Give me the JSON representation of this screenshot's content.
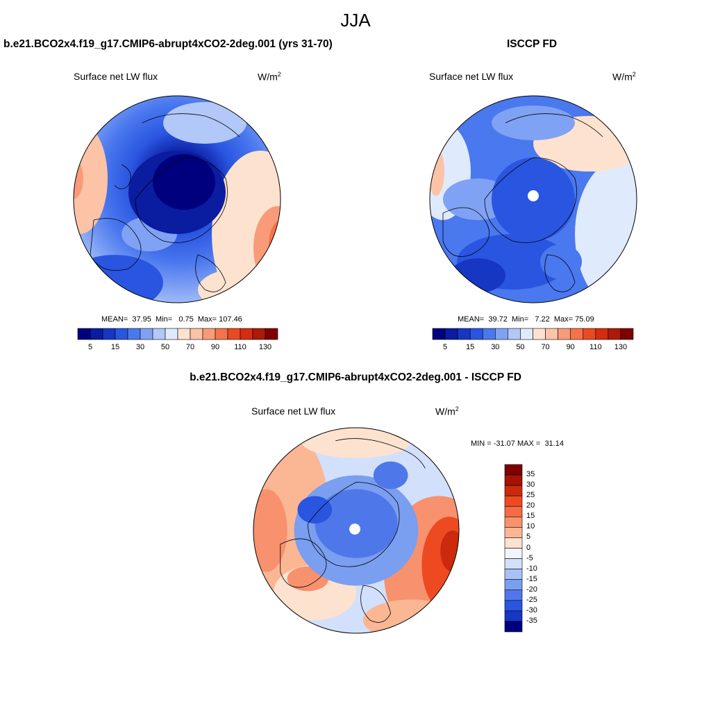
{
  "figure": {
    "season": "JJA",
    "left_title": "b.e21.BCO2x4.f19_g17.CMIP6-abrupt4xCO2-2deg.001 (yrs 31-70)",
    "right_title": "ISCCP FD",
    "diff_title": "b.e21.BCO2x4.f19_g17.CMIP6-abrupt4xCO2-2deg.001 - ISCCP FD"
  },
  "panels": {
    "model": {
      "variable": "Surface net LW flux",
      "units_base": "W/m",
      "units_exp": "2",
      "mean_label": "MEAN=",
      "mean": "37.95",
      "min_label": "Min=",
      "min": "0.75",
      "max_label": "Max=",
      "max": "107.46"
    },
    "obs": {
      "variable": "Surface net LW flux",
      "units_base": "W/m",
      "units_exp": "2",
      "mean_label": "MEAN=",
      "mean": "39.72",
      "min_label": "Min=",
      "min": "7.22",
      "max_label": "Max=",
      "max": "75.09"
    },
    "diff": {
      "variable": "Surface net LW flux",
      "units_base": "W/m",
      "units_exp": "2",
      "min_label": "MIN =",
      "min": "-31.07",
      "max_label": "MAX =",
      "max": "31.14"
    }
  },
  "abs_colorbar": {
    "colors": [
      "#00007f",
      "#0a1ca0",
      "#1636c4",
      "#2a55e0",
      "#4a78ee",
      "#80a2f4",
      "#b1c8f8",
      "#dfeafc",
      "#fde2cf",
      "#fcc3a6",
      "#f99b78",
      "#f57349",
      "#ea4a22",
      "#d42d10",
      "#ac1a08",
      "#7f0000"
    ],
    "labels": [
      "5",
      "15",
      "30",
      "50",
      "70",
      "90",
      "110",
      "130"
    ]
  },
  "diff_colorbar": {
    "colors": [
      "#7f0000",
      "#a61204",
      "#cc2a0c",
      "#ee4a22",
      "#f46c44",
      "#f8916e",
      "#fbb694",
      "#fde2cf",
      "#f4f4ff",
      "#d2e0fb",
      "#a8c2f5",
      "#7a9ef0",
      "#4e78ea",
      "#2a55e0",
      "#1636c4",
      "#00007f"
    ],
    "labels": [
      "35",
      "30",
      "25",
      "20",
      "15",
      "10",
      "5",
      "0",
      "-5",
      "-10",
      "-15",
      "-20",
      "-25",
      "-30",
      "-35"
    ]
  },
  "chart_data": [
    {
      "type": "heatmap",
      "title": "b.e21.BCO2x4.f19_g17.CMIP6-abrupt4xCO2-2deg.001 (yrs 31-70)",
      "variable": "Surface net LW flux",
      "units": "W/m2",
      "projection": "north polar stereographic",
      "mean": 37.95,
      "min": 0.75,
      "max": 107.46,
      "levels": [
        5,
        10,
        15,
        20,
        30,
        40,
        50,
        60,
        70,
        80,
        90,
        100,
        110,
        120,
        130
      ]
    },
    {
      "type": "heatmap",
      "title": "ISCCP FD",
      "variable": "Surface net LW flux",
      "units": "W/m2",
      "projection": "north polar stereographic",
      "mean": 39.72,
      "min": 7.22,
      "max": 75.09,
      "levels": [
        5,
        10,
        15,
        20,
        30,
        40,
        50,
        60,
        70,
        80,
        90,
        100,
        110,
        120,
        130
      ]
    },
    {
      "type": "heatmap",
      "title": "b.e21.BCO2x4.f19_g17.CMIP6-abrupt4xCO2-2deg.001 - ISCCP FD",
      "variable": "Surface net LW flux",
      "units": "W/m2",
      "projection": "north polar stereographic",
      "min": -31.07,
      "max": 31.14,
      "levels": [
        -35,
        -30,
        -25,
        -20,
        -15,
        -10,
        -5,
        0,
        5,
        10,
        15,
        20,
        25,
        30,
        35
      ]
    }
  ]
}
